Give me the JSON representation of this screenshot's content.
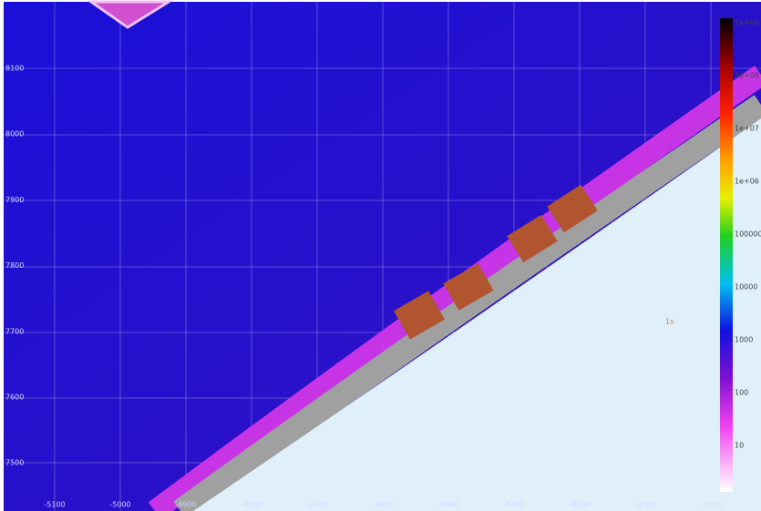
{
  "axes": {
    "x_labels": [
      "-5100",
      "-5000",
      "-4900",
      "-4800",
      "-4700",
      "-4600",
      "-4500",
      "-4400",
      "-4300",
      "-4200",
      "-4100"
    ],
    "y_labels": [
      "8100",
      "8000",
      "7900",
      "7800",
      "7700",
      "7600",
      "7500"
    ]
  },
  "colorbar": {
    "labels": [
      "1e+09",
      "1e+08",
      "1e+07",
      "1e+06",
      "100000",
      "10000",
      "1000",
      "100",
      "10"
    ]
  },
  "annotation": "1s"
}
